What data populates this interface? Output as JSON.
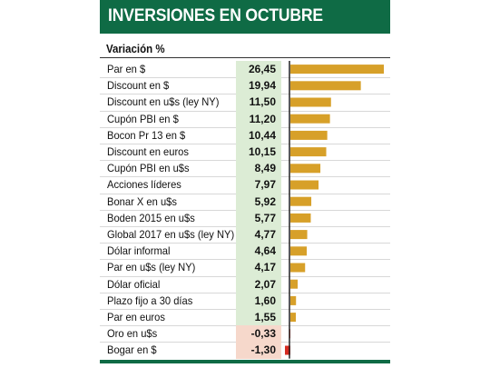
{
  "header": {
    "title": "INVERSIONES EN OCTUBRE",
    "subtitle": "Variación %"
  },
  "colors": {
    "header_green": "#0f6b45",
    "positive_bar": "#d7a029",
    "negative_bar": "#d62a20",
    "positive_cell": "#dcecd5",
    "negative_cell": "#f6d8cb"
  },
  "chart_data": {
    "type": "bar",
    "orientation": "horizontal",
    "title": "INVERSIONES EN OCTUBRE",
    "subtitle": "Variación %",
    "categories": [
      "Par en $",
      "Discount en $",
      "Discount en u$s (ley NY)",
      "Cupón PBI en $",
      "Bocon Pr 13 en $",
      "Discount en euros",
      "Cupón PBI en u$s",
      "Acciones líderes",
      "Bonar X en u$s",
      "Boden 2015 en u$s",
      "Global 2017 en u$s (ley NY)",
      "Dólar informal",
      "Par en u$s (ley NY)",
      "Dólar oficial",
      "Plazo fijo a 30 días",
      "Par en euros",
      "Oro en u$s",
      "Bogar en $"
    ],
    "values": [
      26.45,
      19.94,
      11.5,
      11.2,
      10.44,
      10.15,
      8.49,
      7.97,
      5.92,
      5.77,
      4.77,
      4.64,
      4.17,
      2.07,
      1.6,
      1.55,
      -0.33,
      -1.3
    ],
    "value_labels": [
      "26,45",
      "19,94",
      "11,50",
      "11,20",
      "10,44",
      "10,15",
      "8,49",
      "7,97",
      "5,92",
      "5,77",
      "4,77",
      "4,64",
      "4,17",
      "2,07",
      "1,60",
      "1,55",
      "-0,33",
      "-1,30"
    ],
    "xlim": [
      -1.3,
      26.45
    ],
    "grid": false,
    "legend": "none"
  }
}
